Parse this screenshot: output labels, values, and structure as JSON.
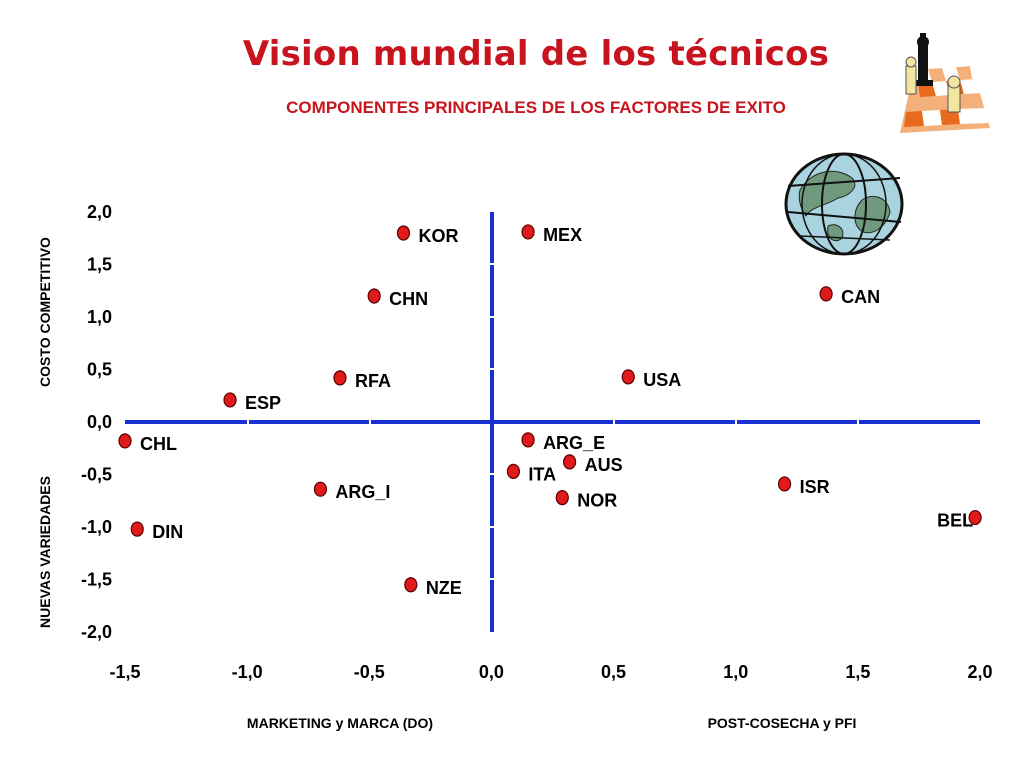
{
  "header": {
    "title": "Vision mundial de los técnicos",
    "subtitle": "COMPONENTES PRINCIPALES DE  LOS FACTORES DE EXITO"
  },
  "icons": {
    "chess": "chess-board-icon",
    "globe": "globe-icon"
  },
  "colors": {
    "title": "#c8141e",
    "axis": "#1a2fd1",
    "point": "#e01a1a"
  },
  "chart_data": {
    "type": "scatter",
    "xlabel_left": "MARKETING y MARCA (DO)",
    "xlabel_right": "POST-COSECHA y PFI",
    "ylabel_top": "COSTO  COMPETITIVO",
    "ylabel_bottom": "NUEVAS VARIEDADES",
    "xlim": [
      -1.5,
      2.0
    ],
    "ylim": [
      -2.0,
      2.0
    ],
    "xticks": [
      "-1,5",
      "-1,0",
      "-0,5",
      "0,0",
      "0,5",
      "1,0",
      "1,5",
      "2,0"
    ],
    "yticks": [
      "2,0",
      "1,5",
      "1,0",
      "0,5",
      "0,0",
      "-0,5",
      "-1,0",
      "-1,5",
      "-2,0"
    ],
    "grid": false,
    "points": [
      {
        "label": "KOR",
        "x": -0.36,
        "y": 1.8
      },
      {
        "label": "MEX",
        "x": 0.15,
        "y": 1.81
      },
      {
        "label": "CHN",
        "x": -0.48,
        "y": 1.2
      },
      {
        "label": "CAN",
        "x": 1.37,
        "y": 1.22
      },
      {
        "label": "RFA",
        "x": -0.62,
        "y": 0.42
      },
      {
        "label": "USA",
        "x": 0.56,
        "y": 0.43
      },
      {
        "label": "ESP",
        "x": -1.07,
        "y": 0.21
      },
      {
        "label": "CHL",
        "x": -1.5,
        "y": -0.18
      },
      {
        "label": "ARG_E",
        "x": 0.15,
        "y": -0.17
      },
      {
        "label": "ITA",
        "x": 0.09,
        "y": -0.47
      },
      {
        "label": "AUS",
        "x": 0.32,
        "y": -0.38
      },
      {
        "label": "NOR",
        "x": 0.29,
        "y": -0.72
      },
      {
        "label": "ARG_I",
        "x": -0.7,
        "y": -0.64
      },
      {
        "label": "ISR",
        "x": 1.2,
        "y": -0.59
      },
      {
        "label": "BEL",
        "x": 1.98,
        "y": -0.91
      },
      {
        "label": "DIN",
        "x": -1.45,
        "y": -1.02
      },
      {
        "label": "NZE",
        "x": -0.33,
        "y": -1.55
      }
    ]
  }
}
